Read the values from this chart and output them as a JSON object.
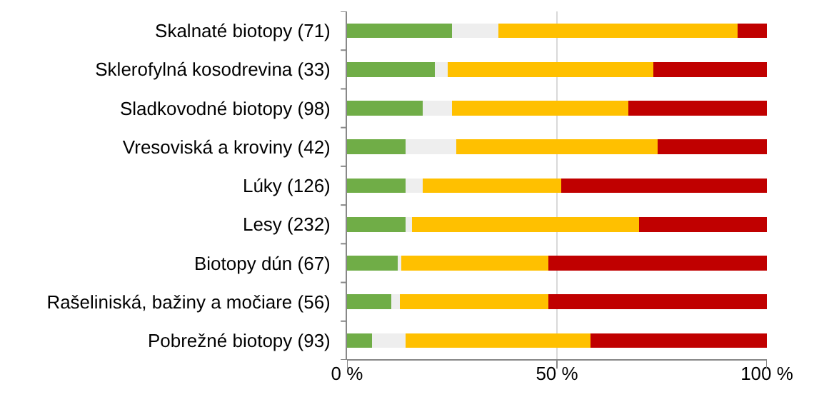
{
  "chart_data": {
    "type": "bar",
    "orientation": "horizontal",
    "stacked": true,
    "categories": [
      "Skalnaté biotopy (71)",
      "Sklerofylná kosodrevina (33)",
      "Sladkovodné biotopy (98)",
      "Vresoviská a kroviny (42)",
      "Lúky (126)",
      "Lesy (232)",
      "Biotopy dún (67)",
      "Rašeliniská, bažiny a močiare (56)",
      "Pobrežné biotopy (93)"
    ],
    "series": [
      {
        "color": "#70ad47",
        "values": [
          25,
          21,
          18,
          14,
          14,
          14,
          12,
          10.5,
          6
        ]
      },
      {
        "color": "#eeeeee",
        "values": [
          11,
          3,
          7,
          12,
          4,
          1.5,
          1,
          2,
          8
        ]
      },
      {
        "color": "#ffc000",
        "values": [
          57,
          49,
          42,
          48,
          33,
          54,
          35,
          35.5,
          44
        ]
      },
      {
        "color": "#c00000",
        "values": [
          7,
          27,
          33,
          26,
          49,
          30.5,
          52,
          52,
          42
        ]
      }
    ],
    "xlim": [
      0,
      100
    ],
    "xticks": [
      {
        "value": 0,
        "label": "0 %"
      },
      {
        "value": 50,
        "label": "50 %"
      },
      {
        "value": 100,
        "label": "100 %"
      }
    ],
    "grid": "x"
  }
}
